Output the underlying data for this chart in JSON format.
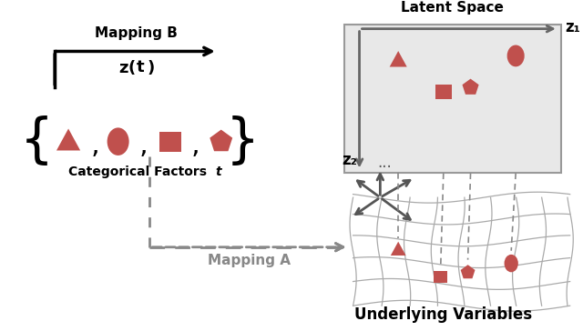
{
  "shape_color": "#C0392B",
  "shape_color_fill": "#C0504D",
  "arrow_color": "#404040",
  "mapping_a_color": "#888888",
  "mapping_b_color": "#000000",
  "background_color": "#FFFFFF",
  "latent_space_bg": "#E8E8E8",
  "grid_color": "#AAAAAA",
  "title": "Underlying Variables",
  "latent_space_label": "Latent Space",
  "mapping_a_label": "Mapping A",
  "mapping_b_label": "Mapping B",
  "z2_label": "z₂",
  "z1_label": "z₁",
  "categorical_label": "Categorical Factors ",
  "categorical_t": "t"
}
